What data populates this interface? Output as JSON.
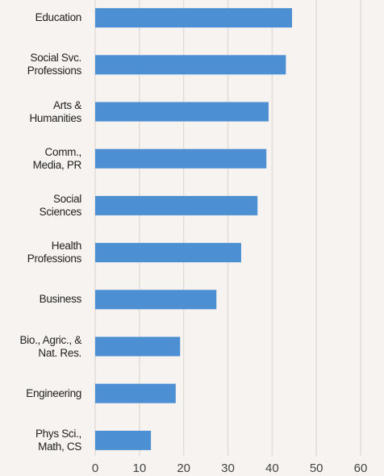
{
  "chart_data": {
    "type": "barh",
    "categories": [
      "Education",
      "Social Svc.\nProfessions",
      "Arts &\nHumanities",
      "Comm.,\nMedia, PR",
      "Social\nSciences",
      "Health\nProfessions",
      "Business",
      "Bio., Agric., &\nNat. Res.",
      "Engineering",
      "Phys Sci.,\nMath, CS"
    ],
    "values": [
      44.5,
      43.1,
      39.2,
      38.7,
      36.7,
      33.0,
      27.4,
      19.2,
      18.2,
      12.6
    ],
    "color": "#4d8fd3",
    "xlim": [
      0,
      60
    ],
    "xticks": [
      0,
      10,
      20,
      30,
      40,
      50,
      60
    ],
    "grid": true
  }
}
